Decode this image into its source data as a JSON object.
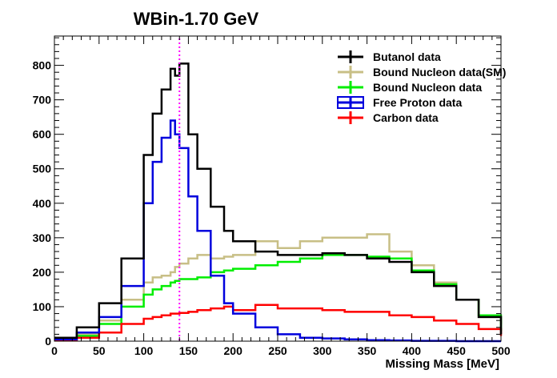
{
  "chart_data": {
    "type": "line",
    "title": "WBin-1.70 GeV",
    "xlabel": "Missing Mass [MeV]",
    "ylabel": "",
    "xlim": [
      0,
      500
    ],
    "ylim": [
      0,
      885
    ],
    "x_ticks": [
      "0",
      "50",
      "100",
      "150",
      "200",
      "250",
      "300",
      "350",
      "400",
      "450",
      "500"
    ],
    "y_ticks": [
      "0",
      "100",
      "200",
      "300",
      "400",
      "500",
      "600",
      "700",
      "800"
    ],
    "grid": false,
    "legend_position": "top-right",
    "reference_line": {
      "x": 140,
      "color": "#ff00ff",
      "style": "dotted"
    },
    "x": [
      0,
      25,
      50,
      75,
      100,
      110,
      120,
      130,
      135,
      140,
      150,
      160,
      175,
      190,
      200,
      225,
      250,
      275,
      300,
      325,
      350,
      375,
      400,
      425,
      450,
      475,
      500
    ],
    "series": [
      {
        "name": "Butanol data",
        "color": "#000000",
        "values": [
          10,
          40,
          110,
          240,
          540,
          660,
          730,
          790,
          770,
          805,
          600,
          500,
          390,
          320,
          290,
          260,
          250,
          250,
          255,
          250,
          240,
          230,
          200,
          160,
          120,
          70,
          20
        ]
      },
      {
        "name": "Bound Nucleon data(SM)",
        "color": "#c8bf86",
        "values": [
          5,
          20,
          60,
          120,
          170,
          185,
          190,
          200,
          215,
          225,
          240,
          250,
          240,
          245,
          250,
          290,
          270,
          290,
          300,
          300,
          310,
          260,
          220,
          170,
          120,
          70,
          50
        ]
      },
      {
        "name": "Bound Nucleon data",
        "color": "#00ee00",
        "values": [
          5,
          15,
          50,
          100,
          135,
          150,
          160,
          170,
          175,
          180,
          180,
          185,
          200,
          205,
          210,
          220,
          230,
          240,
          250,
          250,
          245,
          240,
          205,
          165,
          120,
          75,
          30
        ]
      },
      {
        "name": "Free Proton data",
        "color": "#0000dd",
        "values": [
          5,
          25,
          70,
          160,
          400,
          520,
          590,
          640,
          600,
          560,
          420,
          320,
          190,
          110,
          80,
          40,
          20,
          10,
          8,
          5,
          3,
          2,
          1,
          1,
          0,
          0,
          0
        ]
      },
      {
        "name": "Carbon data",
        "color": "#ff0000",
        "values": [
          3,
          10,
          25,
          50,
          65,
          70,
          75,
          80,
          80,
          82,
          85,
          90,
          95,
          100,
          90,
          105,
          95,
          95,
          90,
          85,
          85,
          75,
          70,
          60,
          50,
          35,
          15
        ]
      }
    ]
  },
  "colors": {
    "axis": "#000000",
    "background": "#ffffff"
  }
}
